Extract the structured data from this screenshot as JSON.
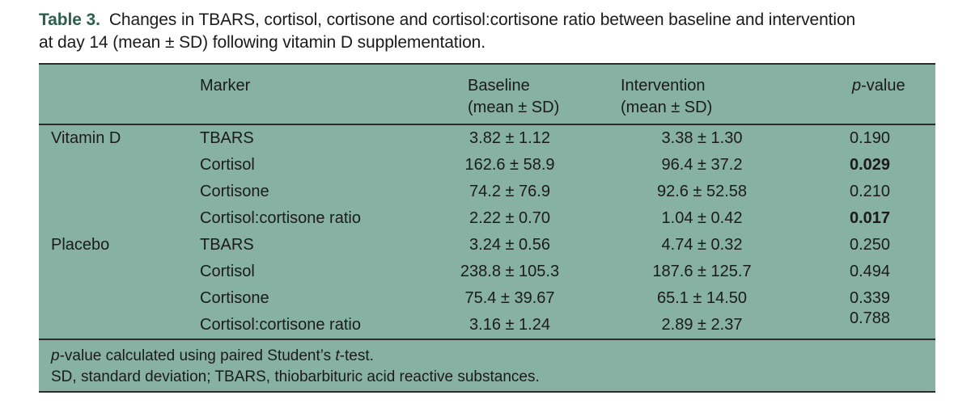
{
  "colors": {
    "table_background": "#87b1a3",
    "rule": "#2b2b2b",
    "title_label": "#2d5f4a",
    "text": "#1b1b1b"
  },
  "title": {
    "label": "Table 3.",
    "line1": "Changes in TBARS, cortisol, cortisone and cortisol:cortisone ratio between baseline and intervention",
    "line2": "at day 14 (mean ± SD) following vitamin D supplementation."
  },
  "table": {
    "headers": {
      "marker": "Marker",
      "baseline": "Baseline",
      "baseline_sub": "(mean ± SD)",
      "intervention": "Intervention",
      "intervention_sub": "(mean ± SD)",
      "pvalue_prefix": "p",
      "pvalue_suffix": "-value"
    },
    "rows": [
      {
        "group": "Vitamin D",
        "marker": "TBARS",
        "baseline": "3.82 ± 1.12",
        "intervention": "3.38 ± 1.30",
        "p": "0.190",
        "p_bold": false
      },
      {
        "group": "",
        "marker": "Cortisol",
        "baseline": "162.6 ± 58.9",
        "intervention": "96.4 ± 37.2",
        "p": "0.029",
        "p_bold": true
      },
      {
        "group": "",
        "marker": "Cortisone",
        "baseline": "74.2 ± 76.9",
        "intervention": "92.6 ± 52.58",
        "p": "0.210",
        "p_bold": false
      },
      {
        "group": "",
        "marker": "Cortisol:cortisone ratio",
        "baseline": "2.22 ± 0.70",
        "intervention": "1.04 ± 0.42",
        "p": "0.017",
        "p_bold": true
      },
      {
        "group": "Placebo",
        "marker": "TBARS",
        "baseline": "3.24 ± 0.56",
        "intervention": "4.74 ± 0.32",
        "p": "0.250",
        "p_bold": false
      },
      {
        "group": "",
        "marker": "Cortisol",
        "baseline": "238.8 ± 105.3",
        "intervention": "187.6 ± 125.7",
        "p": "0.494",
        "p_bold": false
      },
      {
        "group": "",
        "marker": "Cortisone",
        "baseline": "75.4 ± 39.67",
        "intervention": "65.1 ± 14.50",
        "p": "0.339",
        "p_bold": false
      },
      {
        "group": "",
        "marker": "Cortisol:cortisone ratio",
        "baseline": "3.16 ± 1.24",
        "intervention": "2.89 ± 2.37",
        "p": "0.788",
        "p_bold": false
      }
    ]
  },
  "footnotes": {
    "line1_italic1": "p",
    "line1_text1": "-value calculated using paired Student’s ",
    "line1_italic2": "t",
    "line1_text2": "-test.",
    "line2": "SD, standard deviation; TBARS, thiobarbituric acid reactive substances."
  }
}
